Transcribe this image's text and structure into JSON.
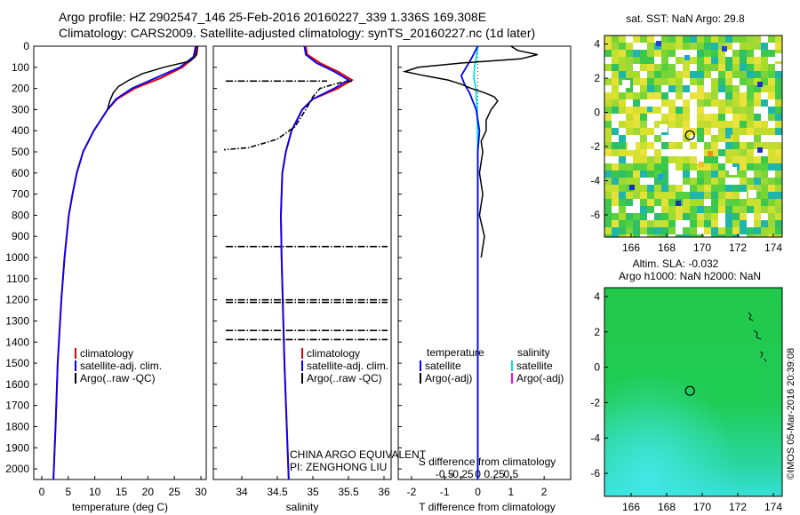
{
  "header": {
    "line1": "Argo profile: HZ 2902547_146 25-Feb-2016 20160227_339 1.336S 169.308E",
    "line2": "Climatology: CARS2009. Satellite-adjusted climatology: synTS_20160227.nc (1d later)"
  },
  "side_text": "©IMOS 05-Mar-2016 20:39:08",
  "annotations": {
    "org": "CHINA ARGO EQUIVALENT",
    "pi": "PI: ZENGHONG LIU"
  },
  "colors": {
    "climatology": "#e00000",
    "satellite": "#0000ff",
    "argo": "#000000",
    "s_satellite": "#00e0e0",
    "s_argo": "#ff00ff"
  },
  "chart_data": [
    {
      "type": "line",
      "id": "temperature",
      "xlabel": "temperature (deg C)",
      "xlim": [
        -1.5,
        31
      ],
      "ylim": [
        2050,
        0
      ],
      "xticks": [
        0,
        5,
        10,
        15,
        20,
        25,
        30
      ],
      "yticks": [
        0,
        100,
        200,
        300,
        400,
        500,
        600,
        700,
        800,
        900,
        1000,
        1100,
        1200,
        1300,
        1400,
        1500,
        1600,
        1700,
        1800,
        1900,
        2000
      ],
      "legend": [
        "climatology",
        "satellite-adj. clim.",
        "Argo(..raw -QC)"
      ],
      "series": [
        {
          "name": "climatology",
          "depth": [
            0,
            50,
            100,
            150,
            200,
            250,
            300,
            400,
            500,
            600,
            700,
            800,
            1000,
            1200,
            1500,
            1800,
            2050
          ],
          "values": [
            29.2,
            28.9,
            26.5,
            22.5,
            17.5,
            14.2,
            12.4,
            9.8,
            7.8,
            6.6,
            5.8,
            5.1,
            4.3,
            3.7,
            3.0,
            2.6,
            2.2
          ]
        },
        {
          "name": "satellite-adj. clim.",
          "depth": [
            0,
            50,
            100,
            150,
            200,
            250,
            300,
            400,
            500,
            600,
            700,
            800,
            1000,
            1200,
            1500,
            1800,
            2050
          ],
          "values": [
            29.0,
            28.6,
            26.0,
            21.5,
            17.0,
            14.0,
            12.4,
            9.8,
            7.8,
            6.6,
            5.8,
            5.1,
            4.3,
            3.7,
            3.0,
            2.6,
            2.2
          ]
        },
        {
          "name": "Argo(..raw -QC)",
          "depth": [
            0,
            40,
            70,
            100,
            130,
            160,
            190,
            220,
            260,
            300
          ],
          "values": [
            29.4,
            29.2,
            28.0,
            23.0,
            19.0,
            16.5,
            14.5,
            13.5,
            12.8,
            12.4
          ]
        }
      ]
    },
    {
      "type": "line",
      "id": "salinity",
      "xlabel": "salinity",
      "xlim": [
        33.6,
        36.1
      ],
      "ylim": [
        2050,
        0
      ],
      "xticks": [
        34,
        34.5,
        35,
        35.5,
        36
      ],
      "legend": [
        "climatology",
        "satellite-adj. clim.",
        "Argo(..raw -QC)"
      ],
      "series": [
        {
          "name": "climatology",
          "depth": [
            0,
            40,
            80,
            120,
            160,
            200,
            250,
            300,
            400,
            500,
            600,
            800,
            1000,
            1500,
            2050
          ],
          "values": [
            34.9,
            34.92,
            35.1,
            35.35,
            35.55,
            35.35,
            35.0,
            34.85,
            34.7,
            34.62,
            34.57,
            34.55,
            34.56,
            34.6,
            34.66
          ]
        },
        {
          "name": "satellite-adj. clim.",
          "depth": [
            0,
            40,
            80,
            120,
            160,
            200,
            250,
            300,
            400,
            500,
            600,
            800,
            1000,
            1500,
            2050
          ],
          "values": [
            34.88,
            34.9,
            35.05,
            35.3,
            35.5,
            35.3,
            35.0,
            34.85,
            34.7,
            34.62,
            34.57,
            34.55,
            34.56,
            34.6,
            34.66
          ]
        },
        {
          "name": "Argo(..raw -QC)",
          "depth": [
            165,
            170,
            180,
            200,
            240,
            300,
            380,
            440,
            480,
            490
          ],
          "values": [
            35.55,
            35.42,
            35.3,
            35.1,
            35.0,
            34.9,
            34.75,
            34.5,
            34.1,
            33.75
          ]
        }
      ],
      "dashed_depths": [
        165,
        948,
        1200,
        1212,
        1345,
        1388
      ]
    },
    {
      "type": "line",
      "id": "difference",
      "xlabel": "T difference from climatology",
      "xlabel_top": "S difference from climatology",
      "xlim": [
        -2.4,
        2.8
      ],
      "ylim": [
        2050,
        0
      ],
      "xticks": [
        -2,
        -1,
        0,
        1,
        2
      ],
      "xticks_top": [
        -0.5,
        -0.25,
        0,
        0.25,
        0.5
      ],
      "legend": {
        "temperature_title": "temperature",
        "salinity_title": "salinity",
        "t_sat": "satellite",
        "t_argo": "Argo(-adj)",
        "s_sat": "satellite",
        "s_argo": "Argo(-adj)"
      },
      "series": [
        {
          "name": "T satellite",
          "depth": [
            0,
            60,
            100,
            140,
            180,
            220,
            260,
            300,
            400,
            500,
            700,
            1000,
            1500,
            2050
          ],
          "values": [
            0.0,
            -0.2,
            -0.35,
            -0.5,
            -0.4,
            -0.25,
            -0.15,
            -0.05,
            0.05,
            0.0,
            0.0,
            0.0,
            0.0,
            0.0
          ]
        },
        {
          "name": "T Argo(-adj)",
          "depth": [
            0,
            20,
            40,
            60,
            80,
            100,
            120,
            140,
            160,
            180,
            200,
            220,
            240,
            260,
            300,
            350,
            400,
            450,
            500,
            600,
            700,
            800,
            900,
            1000
          ],
          "values": [
            1.0,
            1.2,
            1.8,
            1.3,
            -0.5,
            -1.8,
            -2.2,
            -1.6,
            -0.9,
            -0.5,
            -0.2,
            0.2,
            0.5,
            0.6,
            0.4,
            0.25,
            0.25,
            0.1,
            0.15,
            0.05,
            0.15,
            0.05,
            0.2,
            0.1
          ]
        },
        {
          "name": "S satellite",
          "depth": [
            0,
            50,
            100,
            150,
            200,
            300,
            500,
            1000,
            2050
          ],
          "values": [
            0.0,
            -0.02,
            -0.05,
            -0.06,
            -0.03,
            -0.01,
            0.0,
            0.0,
            0.0
          ]
        }
      ]
    },
    {
      "type": "heatmap",
      "id": "sst_map",
      "title": "sat. SST: NaN Argo: 29.8",
      "xlim": [
        164.5,
        174.5
      ],
      "ylim": [
        -7.3,
        4.5
      ],
      "xticks": [
        166,
        168,
        170,
        172,
        174
      ],
      "yticks": [
        -6,
        -4,
        -2,
        0,
        2,
        4
      ],
      "marker": [
        169.308,
        -1.336
      ]
    },
    {
      "type": "heatmap",
      "id": "sla_map",
      "title": "Altim. SLA: -0.032",
      "subtitle": "Argo h1000: NaN h2000: NaN",
      "xlim": [
        164.5,
        174.5
      ],
      "ylim": [
        -7.3,
        4.5
      ],
      "xticks": [
        166,
        168,
        170,
        172,
        174
      ],
      "yticks": [
        -6,
        -4,
        -2,
        0,
        2,
        4
      ],
      "marker": [
        169.308,
        -1.336
      ]
    }
  ]
}
